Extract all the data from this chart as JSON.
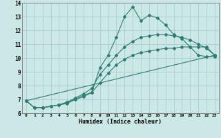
{
  "title": "",
  "xlabel": "Humidex (Indice chaleur)",
  "ylabel": "",
  "bg_color": "#cce8e6",
  "line_color": "#2d7d72",
  "grid_color": "#aacccc",
  "xlim": [
    -0.5,
    23.5
  ],
  "ylim": [
    6,
    14
  ],
  "xticks": [
    0,
    1,
    2,
    3,
    4,
    5,
    6,
    7,
    8,
    9,
    10,
    11,
    12,
    13,
    14,
    15,
    16,
    17,
    18,
    19,
    20,
    21,
    22,
    23
  ],
  "yticks": [
    6,
    7,
    8,
    9,
    10,
    11,
    12,
    13,
    14
  ],
  "series": [
    {
      "x": [
        0,
        1,
        2,
        3,
        4,
        5,
        6,
        7,
        8,
        9,
        10,
        11,
        12,
        13,
        14,
        15,
        16,
        17,
        18,
        19,
        20,
        21,
        22,
        23
      ],
      "y": [
        6.9,
        6.4,
        6.4,
        6.5,
        6.6,
        6.8,
        7.0,
        7.3,
        7.5,
        9.3,
        10.2,
        11.5,
        13.0,
        13.7,
        12.7,
        13.1,
        12.9,
        12.4,
        11.7,
        11.4,
        10.8,
        10.2,
        10.1,
        10.1
      ],
      "marker": true
    },
    {
      "x": [
        0,
        1,
        2,
        3,
        4,
        5,
        6,
        7,
        8,
        9,
        10,
        11,
        12,
        13,
        14,
        15,
        16,
        17,
        18,
        19,
        20,
        21,
        22,
        23
      ],
      "y": [
        6.9,
        6.4,
        6.4,
        6.5,
        6.6,
        6.8,
        7.1,
        7.4,
        7.8,
        8.8,
        9.5,
        10.2,
        10.8,
        11.2,
        11.5,
        11.6,
        11.7,
        11.7,
        11.6,
        11.5,
        11.3,
        11.0,
        10.7,
        10.2
      ],
      "marker": true
    },
    {
      "x": [
        0,
        1,
        2,
        3,
        4,
        5,
        6,
        7,
        8,
        9,
        10,
        11,
        12,
        13,
        14,
        15,
        16,
        17,
        18,
        19,
        20,
        21,
        22,
        23
      ],
      "y": [
        6.9,
        6.4,
        6.4,
        6.5,
        6.6,
        6.7,
        7.0,
        7.2,
        7.5,
        8.2,
        8.9,
        9.5,
        9.9,
        10.2,
        10.4,
        10.5,
        10.6,
        10.7,
        10.7,
        10.8,
        10.8,
        10.8,
        10.8,
        10.2
      ],
      "marker": true
    },
    {
      "x": [
        0,
        23
      ],
      "y": [
        6.9,
        10.2
      ],
      "marker": false
    }
  ]
}
